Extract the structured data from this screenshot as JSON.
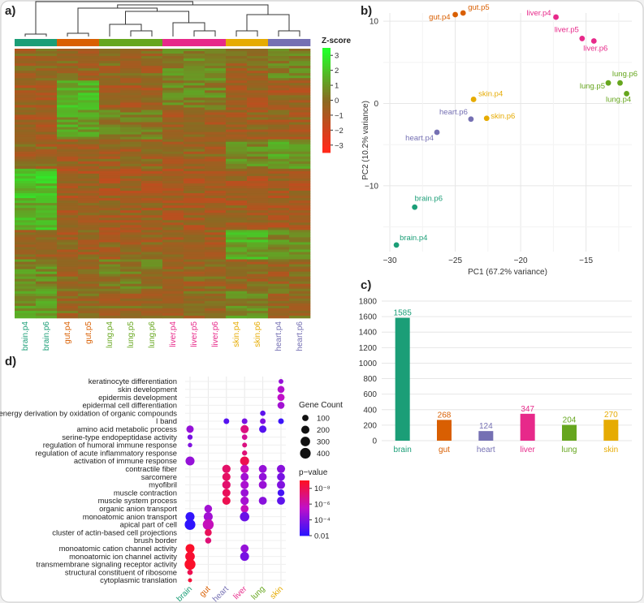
{
  "colors": {
    "brain": "#1b9e77",
    "gut": "#d95f02",
    "heart": "#7570b3",
    "liver": "#e7298a",
    "lung": "#66a61e",
    "skin": "#e6ab02"
  },
  "panel_labels": {
    "a": "a)",
    "b": "b)",
    "c": "c)",
    "d": "d)"
  },
  "chart_data": [
    {
      "id": "a",
      "type": "heatmap",
      "title": "",
      "columns": [
        "brain.p4",
        "brain.p6",
        "gut.p4",
        "gut.p5",
        "lung.p4",
        "lung.p5",
        "lung.p6",
        "liver.p4",
        "liver.p5",
        "liver.p6",
        "skin.p4",
        "skin.p6",
        "heart.p4",
        "heart.p6"
      ],
      "column_groups": [
        "brain",
        "brain",
        "gut",
        "gut",
        "lung",
        "lung",
        "lung",
        "liver",
        "liver",
        "liver",
        "skin",
        "skin",
        "heart",
        "heart"
      ],
      "dendrogram": "column clustering",
      "colorbar": {
        "title": "Z-score",
        "ticks": [
          3,
          2,
          1,
          0,
          -1,
          -2,
          -3
        ],
        "range": [
          -3.5,
          3.5
        ],
        "low": "#ff2a1a",
        "mid": "#8a6a22",
        "high": "#22ff2a"
      }
    },
    {
      "id": "b",
      "type": "scatter",
      "xlabel": "PC1 (67.2% variance)",
      "ylabel": "PC2 (10.2% variance)",
      "xlim": [
        -30.5,
        -11.5
      ],
      "ylim": [
        -18,
        11
      ],
      "xticks": [
        -30,
        -25,
        -20,
        -15
      ],
      "yticks": [
        10,
        0,
        -10
      ],
      "points": [
        {
          "label": "gut.p5",
          "group": "gut",
          "x": -24.4,
          "y": 11.0
        },
        {
          "label": "gut.p4",
          "group": "gut",
          "x": -25.0,
          "y": 10.8
        },
        {
          "label": "liver.p4",
          "group": "liver",
          "x": -17.3,
          "y": 10.5
        },
        {
          "label": "liver.p5",
          "group": "liver",
          "x": -15.3,
          "y": 7.9
        },
        {
          "label": "liver.p6",
          "group": "liver",
          "x": -14.4,
          "y": 7.6
        },
        {
          "label": "lung.p6",
          "group": "lung",
          "x": -12.4,
          "y": 2.5
        },
        {
          "label": "lung.p5",
          "group": "lung",
          "x": -13.3,
          "y": 2.5
        },
        {
          "label": "lung.p4",
          "group": "lung",
          "x": -11.9,
          "y": 1.2
        },
        {
          "label": "skin.p4",
          "group": "skin",
          "x": -23.6,
          "y": 0.5
        },
        {
          "label": "skin.p6",
          "group": "skin",
          "x": -22.6,
          "y": -1.8
        },
        {
          "label": "heart.p6",
          "group": "heart",
          "x": -23.8,
          "y": -1.9
        },
        {
          "label": "heart.p4",
          "group": "heart",
          "x": -26.4,
          "y": -3.5
        },
        {
          "label": "brain.p6",
          "group": "brain",
          "x": -28.1,
          "y": -12.6
        },
        {
          "label": "brain.p4",
          "group": "brain",
          "x": -29.5,
          "y": -17.2
        }
      ]
    },
    {
      "id": "c",
      "type": "bar",
      "categories": [
        "brain",
        "gut",
        "heart",
        "liver",
        "lung",
        "skin"
      ],
      "values": [
        1585,
        268,
        124,
        347,
        204,
        270
      ],
      "value_labels": [
        "1585",
        "268",
        "124",
        "347",
        "204",
        "270"
      ],
      "ylim": [
        0,
        1800
      ],
      "yticks": [
        "0",
        "200",
        "400",
        "600",
        "800",
        "1000",
        "1200",
        "1400",
        "1600",
        "1800"
      ],
      "title": "",
      "xlabel": "",
      "ylabel": ""
    },
    {
      "id": "d",
      "type": "scatter",
      "subtype": "dot plot",
      "columns": [
        "brain",
        "gut",
        "heart",
        "liver",
        "lung",
        "skin"
      ],
      "terms": [
        "keratinocyte differentiation",
        "skin development",
        "epidermis development",
        "epidermal cell differentiation",
        "energy derivation by oxidation of organic compounds",
        "I band",
        "amino acid metabolic process",
        "serine-type endopeptidase activity",
        "regulation of humoral immune response",
        "regulation of acute inflammatory response",
        "activation of immune response",
        "contractile fiber",
        "sarcomere",
        "myofibril",
        "muscle contraction",
        "muscle system process",
        "organic anion transport",
        "monoatomic anion transport",
        "apical part of cell",
        "cluster of actin-based cell projections",
        "brush border",
        "monoatomic cation channel activity",
        "monoatomic ion channel activity",
        "transmembrane signaling receptor activity",
        "structural constituent of ribosome",
        "cytoplasmic translation"
      ],
      "size_legend": {
        "title": "Gene Count",
        "values": [
          100,
          200,
          300,
          400
        ],
        "labels": [
          "100",
          "200",
          "300",
          "400"
        ]
      },
      "color_legend": {
        "title": "p−value",
        "labels": [
          "10⁻⁸",
          "10⁻⁶",
          "10⁻⁴",
          "0.01"
        ],
        "log10_values": [
          -8,
          -6,
          -4,
          -2
        ],
        "range": [
          -9,
          -2
        ],
        "low": "#ff1020",
        "high": "#2a14ff"
      },
      "points": [
        {
          "term": 0,
          "col": 5,
          "count": 40,
          "log10p": -4.5
        },
        {
          "term": 1,
          "col": 5,
          "count": 130,
          "log10p": -5.2
        },
        {
          "term": 2,
          "col": 5,
          "count": 140,
          "log10p": -5.5
        },
        {
          "term": 3,
          "col": 5,
          "count": 130,
          "log10p": -4.8
        },
        {
          "term": 4,
          "col": 4,
          "count": 60,
          "log10p": -3.2
        },
        {
          "term": 5,
          "col": 2,
          "count": 70,
          "log10p": -3.0
        },
        {
          "term": 5,
          "col": 3,
          "count": 70,
          "log10p": -3.8
        },
        {
          "term": 5,
          "col": 4,
          "count": 70,
          "log10p": -4.0
        },
        {
          "term": 5,
          "col": 5,
          "count": 70,
          "log10p": -2.4
        },
        {
          "term": 6,
          "col": 0,
          "count": 150,
          "log10p": -4.5
        },
        {
          "term": 6,
          "col": 3,
          "count": 200,
          "log10p": -7.0
        },
        {
          "term": 6,
          "col": 4,
          "count": 150,
          "log10p": -3.0
        },
        {
          "term": 7,
          "col": 0,
          "count": 50,
          "log10p": -3.8
        },
        {
          "term": 7,
          "col": 3,
          "count": 60,
          "log10p": -6.5
        },
        {
          "term": 8,
          "col": 0,
          "count": 30,
          "log10p": -4.0
        },
        {
          "term": 8,
          "col": 3,
          "count": 40,
          "log10p": -7.0
        },
        {
          "term": 9,
          "col": 3,
          "count": 50,
          "log10p": -7.2
        },
        {
          "term": 10,
          "col": 0,
          "count": 260,
          "log10p": -4.5
        },
        {
          "term": 10,
          "col": 3,
          "count": 260,
          "log10p": -8.0
        },
        {
          "term": 11,
          "col": 2,
          "count": 210,
          "log10p": -7.5
        },
        {
          "term": 11,
          "col": 3,
          "count": 210,
          "log10p": -5.8
        },
        {
          "term": 11,
          "col": 4,
          "count": 190,
          "log10p": -4.5
        },
        {
          "term": 11,
          "col": 5,
          "count": 200,
          "log10p": -4.2
        },
        {
          "term": 12,
          "col": 2,
          "count": 200,
          "log10p": -7.6
        },
        {
          "term": 12,
          "col": 3,
          "count": 190,
          "log10p": -4.8
        },
        {
          "term": 12,
          "col": 4,
          "count": 180,
          "log10p": -4.4
        },
        {
          "term": 12,
          "col": 5,
          "count": 180,
          "log10p": -3.8
        },
        {
          "term": 13,
          "col": 2,
          "count": 210,
          "log10p": -7.4
        },
        {
          "term": 13,
          "col": 3,
          "count": 200,
          "log10p": -5.0
        },
        {
          "term": 13,
          "col": 4,
          "count": 190,
          "log10p": -4.6
        },
        {
          "term": 13,
          "col": 5,
          "count": 200,
          "log10p": -4.0
        },
        {
          "term": 14,
          "col": 2,
          "count": 190,
          "log10p": -7.8
        },
        {
          "term": 14,
          "col": 3,
          "count": 180,
          "log10p": -4.6
        },
        {
          "term": 14,
          "col": 5,
          "count": 120,
          "log10p": -2.6
        },
        {
          "term": 15,
          "col": 2,
          "count": 200,
          "log10p": -8.0
        },
        {
          "term": 15,
          "col": 3,
          "count": 210,
          "log10p": -4.9
        },
        {
          "term": 15,
          "col": 4,
          "count": 190,
          "log10p": -4.2
        },
        {
          "term": 15,
          "col": 5,
          "count": 190,
          "log10p": -3.2
        },
        {
          "term": 16,
          "col": 1,
          "count": 170,
          "log10p": -4.8
        },
        {
          "term": 16,
          "col": 3,
          "count": 180,
          "log10p": -5.8
        },
        {
          "term": 17,
          "col": 0,
          "count": 260,
          "log10p": -2.2
        },
        {
          "term": 17,
          "col": 1,
          "count": 260,
          "log10p": -4.8
        },
        {
          "term": 17,
          "col": 3,
          "count": 290,
          "log10p": -3.5
        },
        {
          "term": 18,
          "col": 0,
          "count": 400,
          "log10p": -2.1
        },
        {
          "term": 18,
          "col": 1,
          "count": 420,
          "log10p": -5.8
        },
        {
          "term": 19,
          "col": 1,
          "count": 130,
          "log10p": -7.8
        },
        {
          "term": 20,
          "col": 1,
          "count": 90,
          "log10p": -7.2
        },
        {
          "term": 21,
          "col": 0,
          "count": 250,
          "log10p": -8.8
        },
        {
          "term": 21,
          "col": 3,
          "count": 190,
          "log10p": -4.5
        },
        {
          "term": 22,
          "col": 0,
          "count": 300,
          "log10p": -8.6
        },
        {
          "term": 22,
          "col": 3,
          "count": 250,
          "log10p": -3.8
        },
        {
          "term": 23,
          "col": 0,
          "count": 420,
          "log10p": -8.8
        },
        {
          "term": 24,
          "col": 0,
          "count": 60,
          "log10p": -8.0
        },
        {
          "term": 25,
          "col": 0,
          "count": 20,
          "log10p": -8.5
        }
      ]
    }
  ]
}
